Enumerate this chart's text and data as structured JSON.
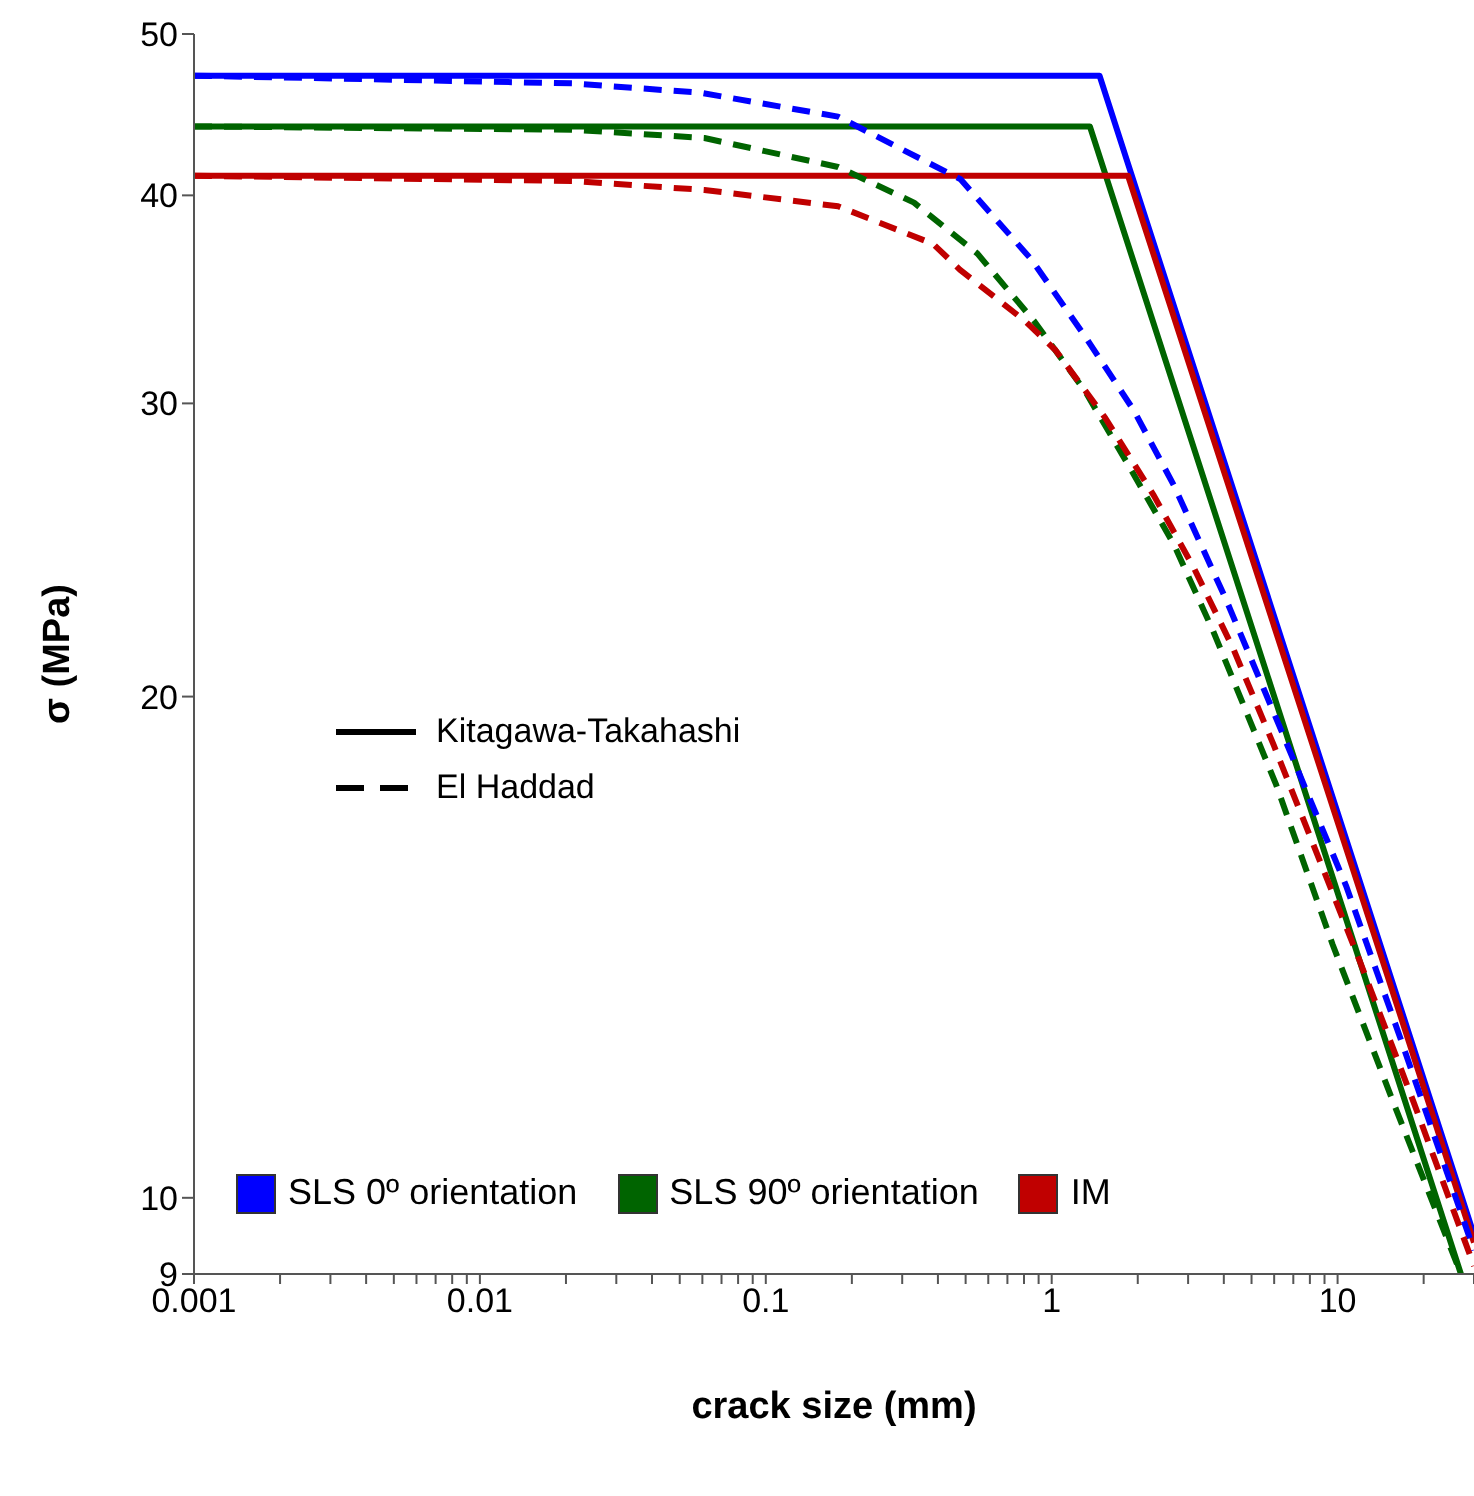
{
  "chart_data": {
    "type": "line",
    "xlabel": "crack size (mm)",
    "ylabel": "σ (MPa)",
    "log": "xy",
    "xlim": [
      0.001,
      30
    ],
    "ylim": [
      9,
      50
    ],
    "xticks": [
      0.001,
      {
        "value": 0.002,
        "label": null
      },
      {
        "value": 0.003,
        "label": null
      },
      {
        "value": 0.004,
        "label": null
      },
      {
        "value": 0.005,
        "label": null
      },
      {
        "value": 0.006,
        "label": null
      },
      {
        "value": 0.007,
        "label": null
      },
      {
        "value": 0.008,
        "label": null
      },
      {
        "value": 0.009,
        "label": null
      },
      0.01,
      {
        "value": 0.02,
        "label": null
      },
      {
        "value": 0.03,
        "label": null
      },
      {
        "value": 0.04,
        "label": null
      },
      {
        "value": 0.05,
        "label": null
      },
      {
        "value": 0.06,
        "label": null
      },
      {
        "value": 0.07,
        "label": null
      },
      {
        "value": 0.08,
        "label": null
      },
      {
        "value": 0.09,
        "label": null
      },
      0.1,
      {
        "value": 0.2,
        "label": null
      },
      {
        "value": 0.3,
        "label": null
      },
      {
        "value": 0.4,
        "label": null
      },
      {
        "value": 0.5,
        "label": null
      },
      {
        "value": 0.6,
        "label": null
      },
      {
        "value": 0.7,
        "label": null
      },
      {
        "value": 0.8,
        "label": null
      },
      {
        "value": 0.9,
        "label": null
      },
      1,
      {
        "value": 2,
        "label": null
      },
      {
        "value": 3,
        "label": null
      },
      {
        "value": 4,
        "label": null
      },
      {
        "value": 5,
        "label": null
      },
      {
        "value": 6,
        "label": null
      },
      {
        "value": 7,
        "label": null
      },
      {
        "value": 8,
        "label": null
      },
      {
        "value": 9,
        "label": null
      },
      10,
      {
        "value": 20,
        "label": null
      },
      {
        "value": 30,
        "label": null
      }
    ],
    "yticks": [
      9,
      10,
      20,
      30,
      40,
      50
    ],
    "grid": false,
    "legend": "bottom left",
    "marker": "none",
    "annotations": [
      "Kitagawa-Takahashi",
      "El Haddad"
    ],
    "series": [
      {
        "name": "SLS 0º orientation",
        "color": "#0000ff",
        "line_style": "solid",
        "x": [
          0.001,
          1.47,
          30
        ],
        "values": [
          47.2,
          47.2,
          9.5
        ]
      },
      {
        "name": "SLS 90º orientation",
        "color": "#006400",
        "line_style": "solid",
        "x": [
          0.001,
          1.36,
          27
        ],
        "values": [
          44.0,
          44.0,
          9.0
        ]
      },
      {
        "name": "IM",
        "color": "#c00000",
        "line_style": "solid",
        "x": [
          0.001,
          1.85,
          30
        ],
        "values": [
          41.1,
          41.1,
          9.4
        ]
      },
      {
        "color": "#0000ff",
        "line_style": "dashed",
        "x": [
          0.001,
          0.021,
          0.059,
          0.179,
          0.48,
          0.85,
          1.31,
          1.94,
          2.67,
          4.06,
          6.26,
          10.7,
          16.5,
          30
        ],
        "values": [
          47.2,
          46.7,
          46.1,
          44.6,
          40.9,
          36.6,
          32.9,
          29.7,
          26.8,
          22.9,
          19.2,
          15.4,
          12.5,
          9.3
        ]
      },
      {
        "color": "#006400",
        "line_style": "dashed",
        "x": [
          0.001,
          0.021,
          0.061,
          0.179,
          0.33,
          0.55,
          0.87,
          1.31,
          1.82,
          2.67,
          3.67,
          6.1,
          9.6,
          15.7,
          27
        ],
        "values": [
          44.0,
          43.8,
          43.3,
          41.6,
          39.6,
          36.9,
          33.6,
          30.5,
          27.7,
          24.7,
          21.9,
          17.7,
          14.2,
          11.4,
          9.0
        ]
      },
      {
        "color": "#c00000",
        "line_style": "dashed",
        "x": [
          0.001,
          0.021,
          0.061,
          0.179,
          0.385,
          0.477,
          0.81,
          1.03,
          1.54,
          2.28,
          3.14,
          4.3,
          5.98,
          11.9,
          18.5,
          30
        ],
        "values": [
          41.1,
          40.8,
          40.3,
          39.4,
          37.4,
          36.1,
          33.6,
          32.3,
          29.4,
          26.4,
          23.9,
          21.4,
          18.7,
          13.9,
          11.4,
          9.1
        ]
      }
    ]
  }
}
